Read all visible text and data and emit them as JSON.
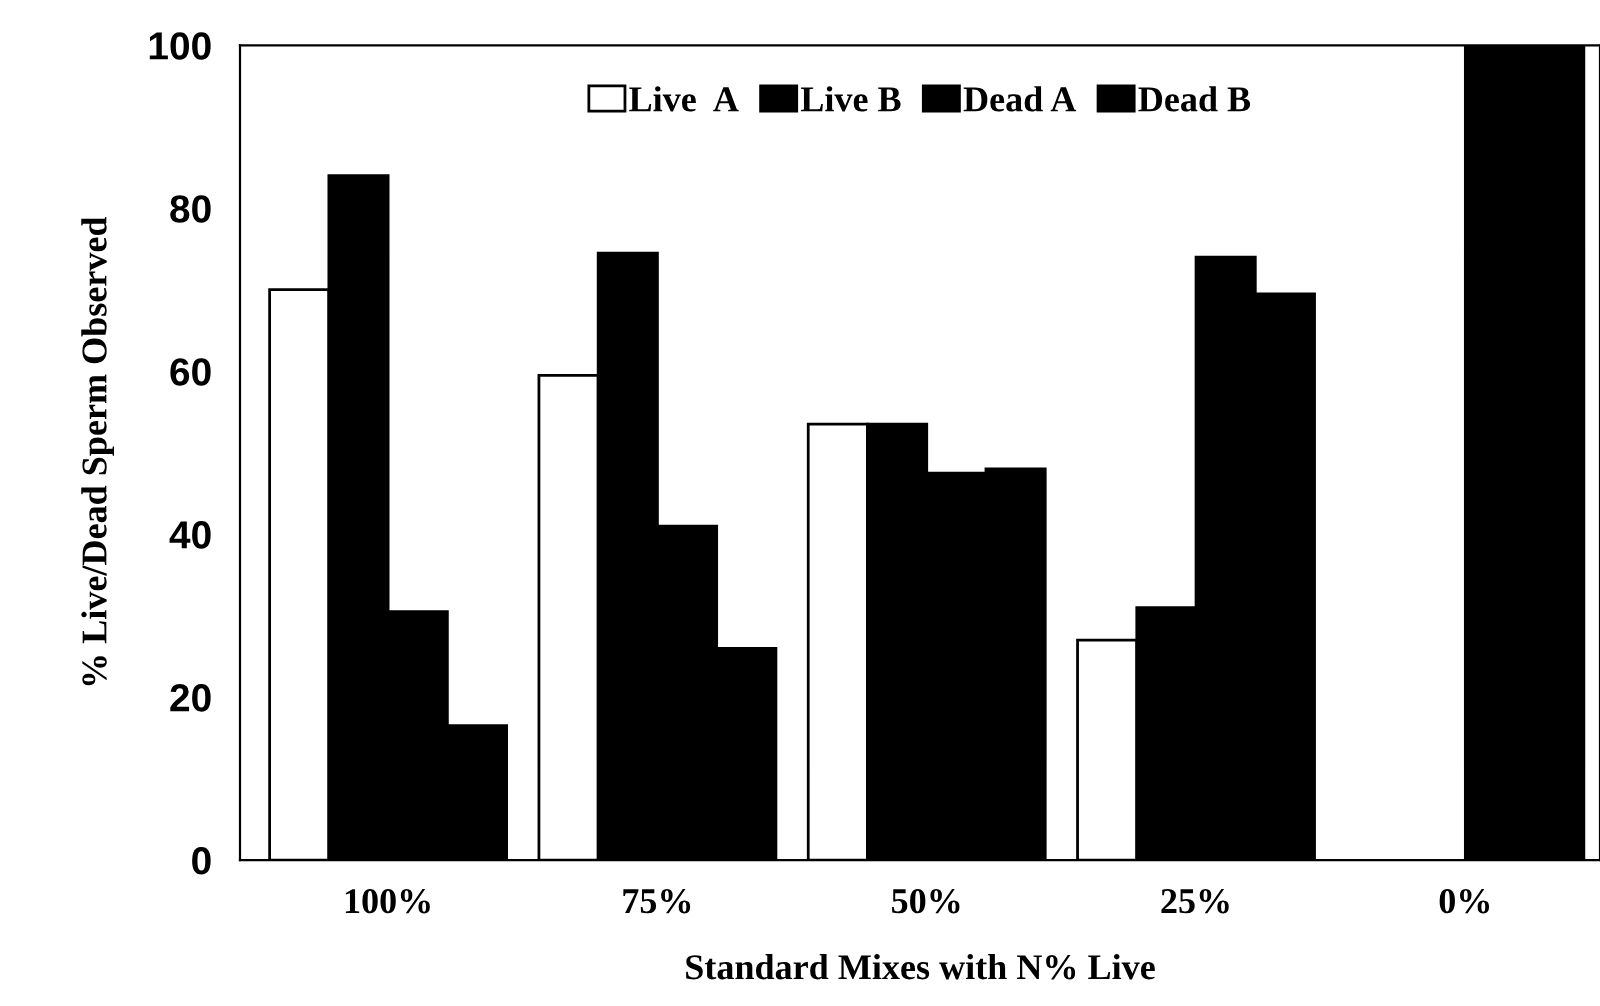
{
  "chart_data": {
    "type": "bar",
    "xlabel": "Standard Mixes with N% Live",
    "ylabel": "% Live/Dead Sperm Observed",
    "categories": [
      "100%",
      "75%",
      "50%",
      "25%",
      "0%"
    ],
    "series": [
      {
        "name": "Live  A",
        "color": "#ffffff",
        "values": [
          70,
          59.5,
          53.5,
          27,
          null
        ]
      },
      {
        "name": "Live B",
        "color": "#000000",
        "values": [
          84,
          74.5,
          53.5,
          31,
          null
        ]
      },
      {
        "name": "Dead A",
        "color": "#000000",
        "values": [
          30.5,
          41,
          47.5,
          74,
          100
        ]
      },
      {
        "name": "Dead B",
        "color": "#000000",
        "values": [
          16.5,
          26,
          48,
          69.5,
          100
        ]
      }
    ],
    "ylim": [
      0,
      100
    ],
    "yticks": [
      0,
      20,
      40,
      60,
      80,
      100
    ],
    "grid": false,
    "legend": "top"
  }
}
